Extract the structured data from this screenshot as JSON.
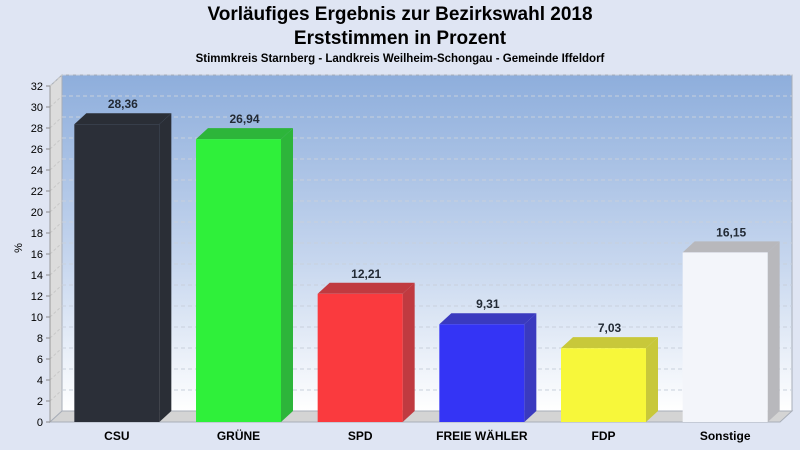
{
  "header": {
    "title": "Vorläufiges Ergebnis zur Bezirkswahl 2018",
    "subtitle": "Erststimmen in Prozent",
    "region": "Stimmkreis Starnberg - Landkreis Weilheim-Schongau - Gemeinde Iffeldorf"
  },
  "chart_data": {
    "type": "bar",
    "title": "Vorläufiges Ergebnis zur Bezirkswahl 2018",
    "subtitle": "Erststimmen in Prozent",
    "xlabel": "",
    "ylabel": "%",
    "ylim": [
      0,
      32
    ],
    "yticks": [
      0,
      2,
      4,
      6,
      8,
      10,
      12,
      14,
      16,
      18,
      20,
      22,
      24,
      26,
      28,
      30,
      32
    ],
    "grid": true,
    "style": "3d",
    "categories": [
      "CSU",
      "GRÜNE",
      "SPD",
      "FREIE WÄHLER",
      "FDP",
      "Sonstige"
    ],
    "values": [
      28.36,
      26.94,
      12.21,
      9.31,
      7.03,
      16.15
    ],
    "value_labels": [
      "28,36",
      "26,94",
      "12,21",
      "9,31",
      "7,03",
      "16,15"
    ],
    "colors": [
      "#2b2f38",
      "#2ff03a",
      "#fa3a3e",
      "#3434f5",
      "#f7f73a",
      "#f3f5fa"
    ],
    "side_colors": [
      "#2a2e36",
      "#2db53a",
      "#c03a40",
      "#3a3abf",
      "#c8c83a",
      "#b8b8bc"
    ]
  }
}
